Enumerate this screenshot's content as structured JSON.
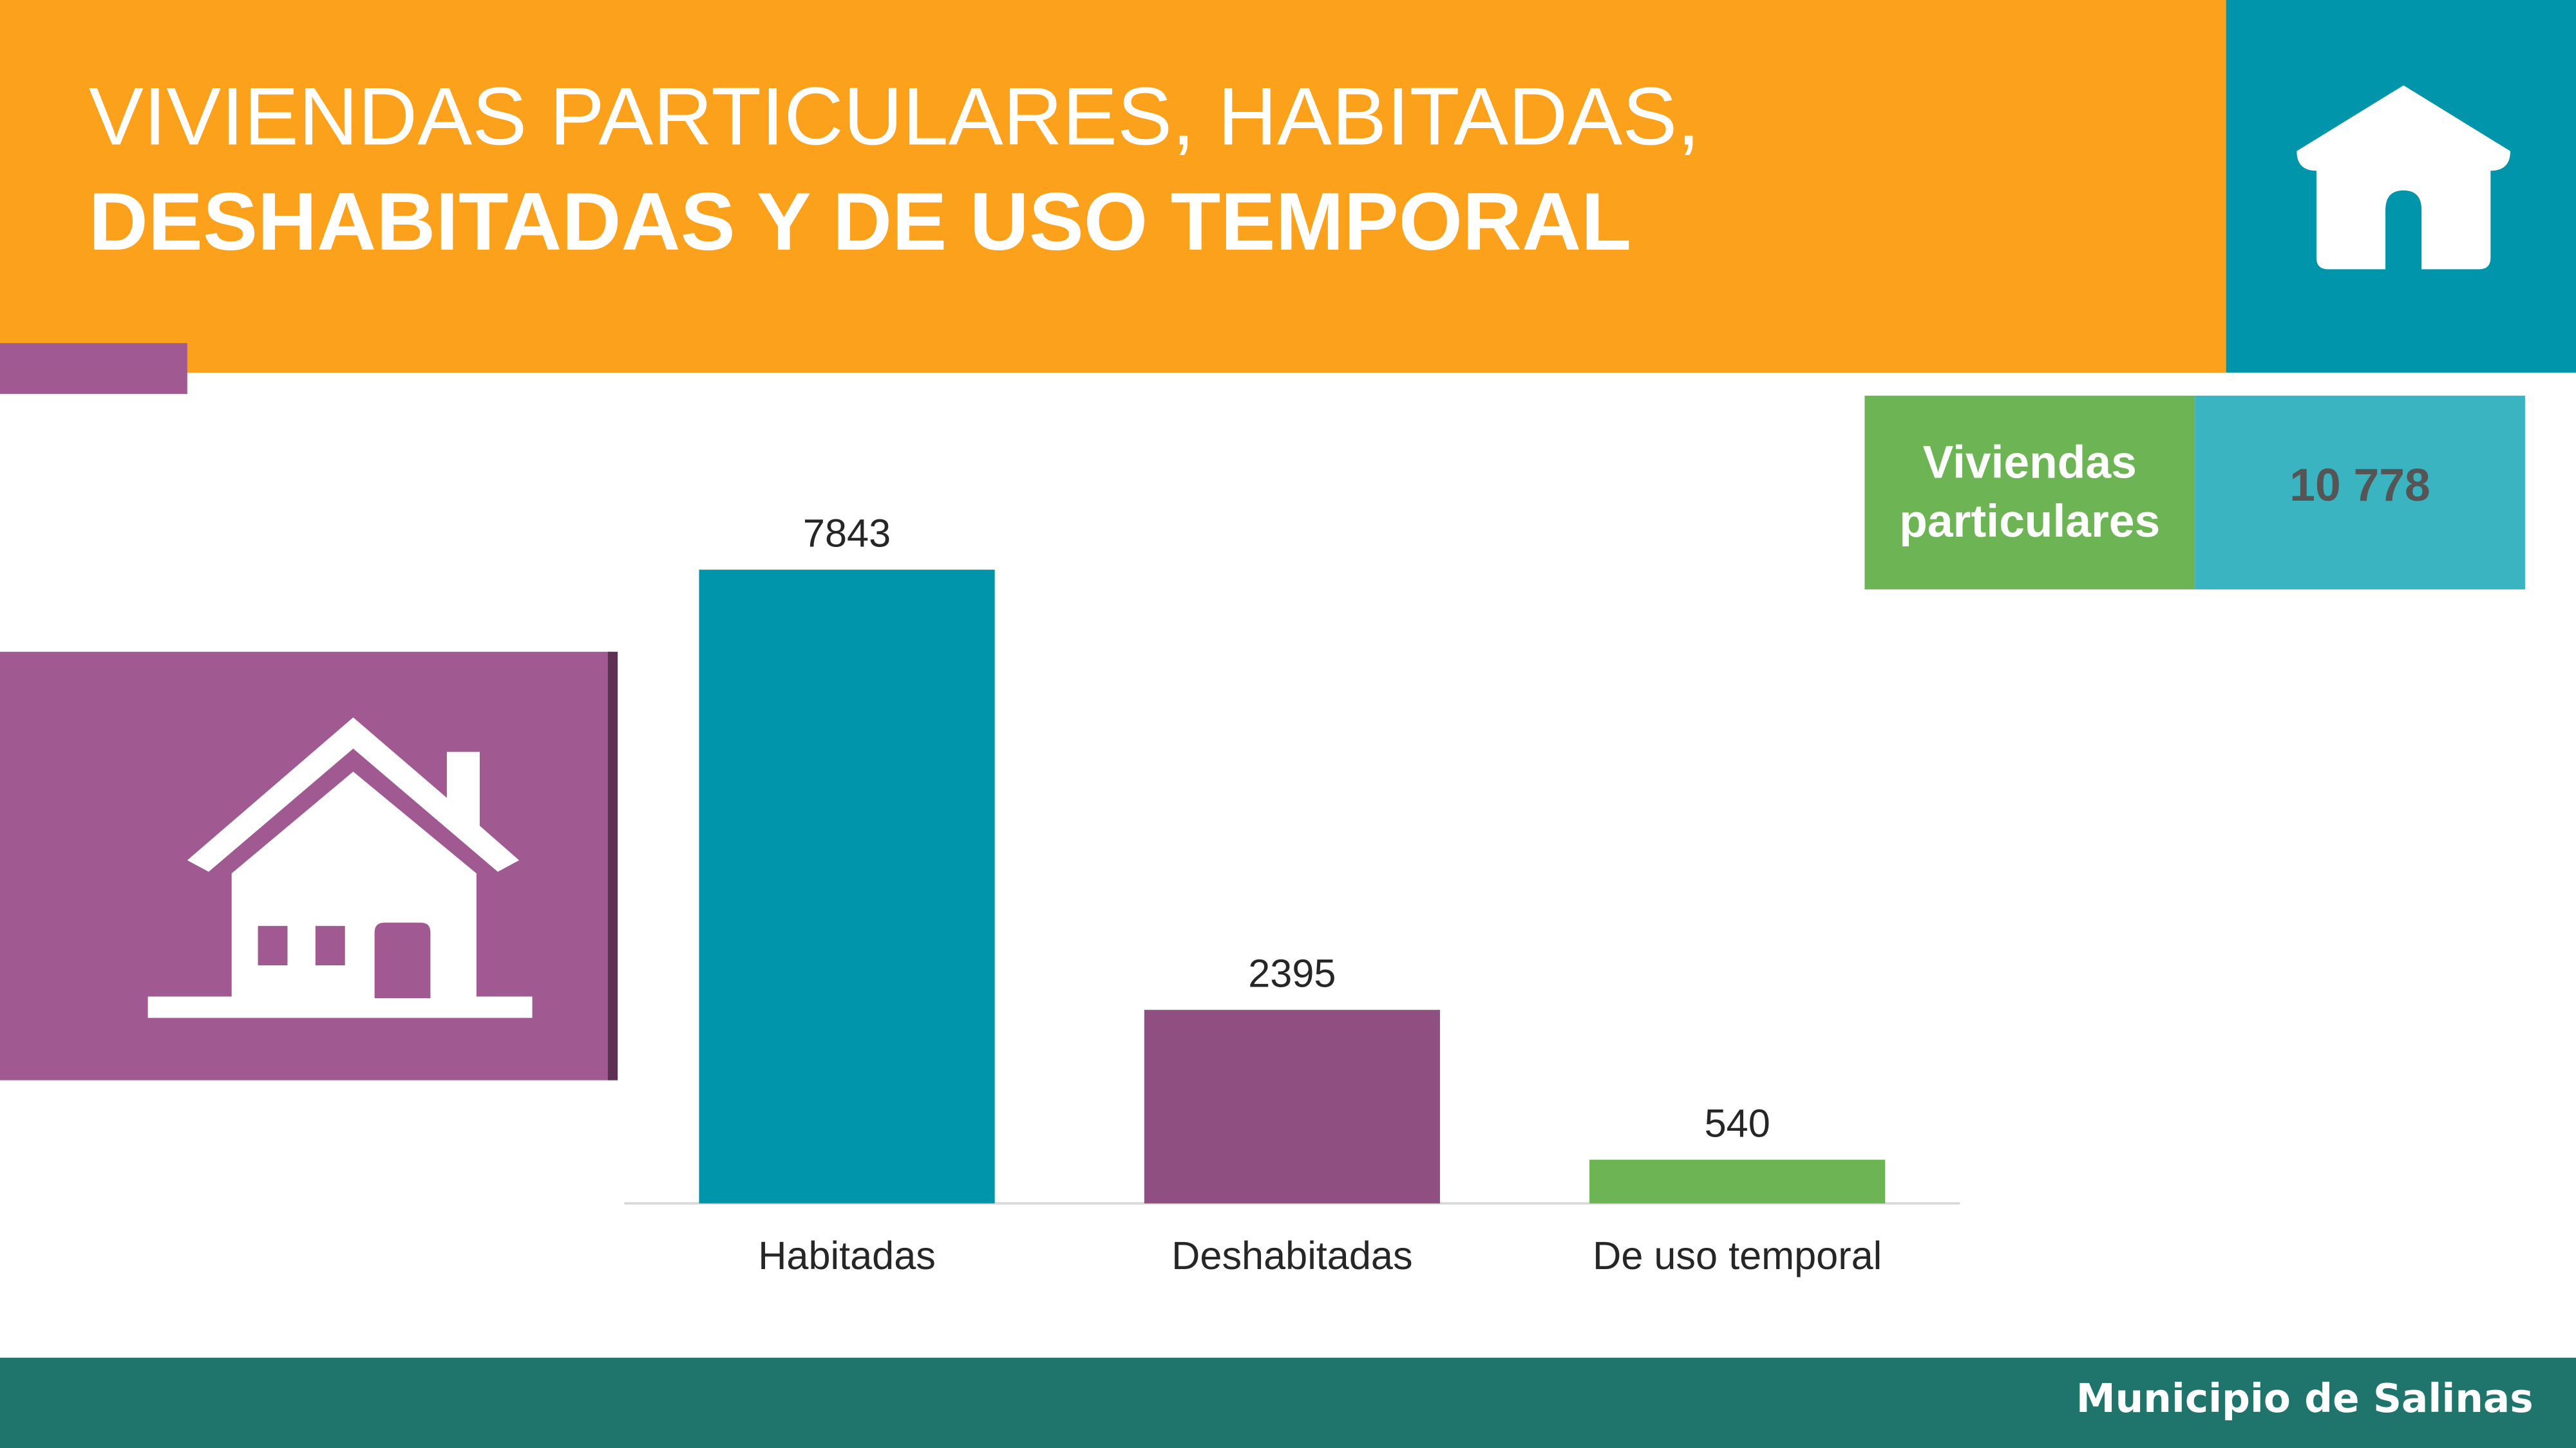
{
  "header": {
    "title_line1": "VIVIENDAS PARTICULARES, HABITADAS,",
    "title_line2": "DESHABITADAS Y DE USO TEMPORAL"
  },
  "summary": {
    "label": "Viviendas particulares",
    "value": "10 778"
  },
  "chart_data": {
    "type": "bar",
    "categories": [
      "Habitadas",
      "Deshabitadas",
      "De uso temporal"
    ],
    "values": [
      7843,
      2395,
      540
    ],
    "colors": [
      "#0095aa",
      "#8f4f80",
      "#6db554"
    ]
  },
  "footer": {
    "text": "Municipio de Salinas"
  }
}
